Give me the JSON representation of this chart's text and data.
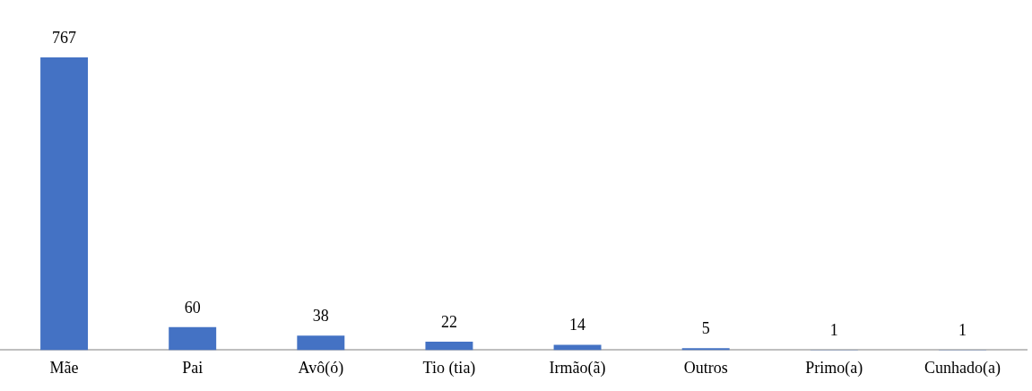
{
  "chart_data": {
    "type": "bar",
    "categories": [
      "Mãe",
      "Pai",
      "Avô(ó)",
      "Tio (tia)",
      "Irmão(ã)",
      "Outros",
      "Primo(a)",
      "Cunhado(a)"
    ],
    "values": [
      767,
      60,
      38,
      22,
      14,
      5,
      1,
      1
    ],
    "color": "#4472c4",
    "data_labels": true,
    "grid": false,
    "legend": false
  }
}
